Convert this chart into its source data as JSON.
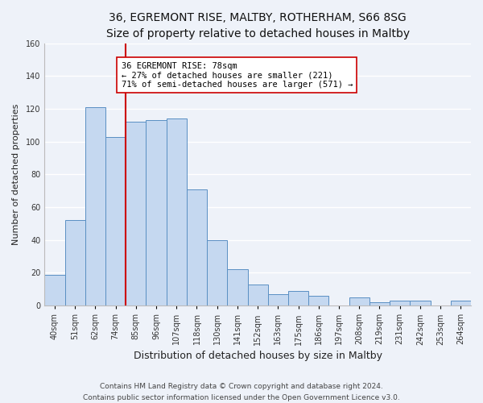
{
  "title": "36, EGREMONT RISE, MALTBY, ROTHERHAM, S66 8SG",
  "subtitle": "Size of property relative to detached houses in Maltby",
  "xlabel": "Distribution of detached houses by size in Maltby",
  "ylabel": "Number of detached properties",
  "bar_labels": [
    "40sqm",
    "51sqm",
    "62sqm",
    "74sqm",
    "85sqm",
    "96sqm",
    "107sqm",
    "118sqm",
    "130sqm",
    "141sqm",
    "152sqm",
    "163sqm",
    "175sqm",
    "186sqm",
    "197sqm",
    "208sqm",
    "219sqm",
    "231sqm",
    "242sqm",
    "253sqm",
    "264sqm"
  ],
  "bar_values": [
    19,
    52,
    121,
    103,
    112,
    113,
    114,
    71,
    40,
    22,
    13,
    7,
    9,
    6,
    0,
    5,
    2,
    3,
    3,
    0,
    3
  ],
  "bar_color": "#c5d8f0",
  "bar_edge_color": "#5a8fc3",
  "vline_x": 3.5,
  "vline_color": "#cc0000",
  "annotation_line1": "36 EGREMONT RISE: 78sqm",
  "annotation_line2": "← 27% of detached houses are smaller (221)",
  "annotation_line3": "71% of semi-detached houses are larger (571) →",
  "annotation_box_color": "#ffffff",
  "annotation_box_edge": "#cc0000",
  "ylim": [
    0,
    160
  ],
  "yticks": [
    0,
    20,
    40,
    60,
    80,
    100,
    120,
    140,
    160
  ],
  "footer_text": "Contains HM Land Registry data © Crown copyright and database right 2024.\nContains public sector information licensed under the Open Government Licence v3.0.",
  "bg_color": "#eef2f9",
  "grid_color": "#ffffff",
  "title_fontsize": 10,
  "subtitle_fontsize": 9,
  "xlabel_fontsize": 9,
  "ylabel_fontsize": 8,
  "tick_fontsize": 7,
  "annotation_fontsize": 7.5,
  "footer_fontsize": 6.5
}
